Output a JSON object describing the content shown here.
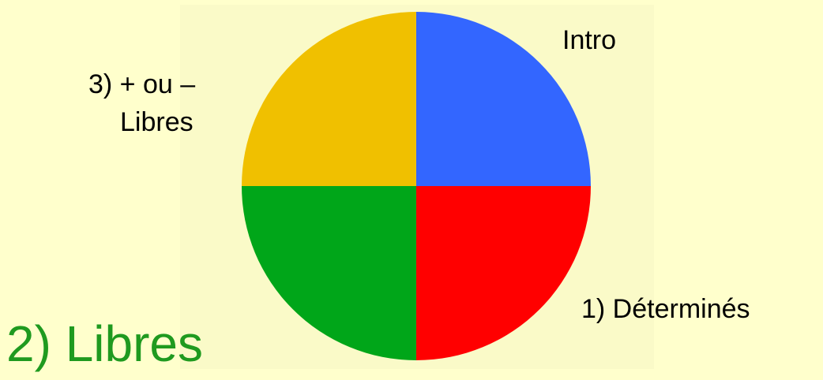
{
  "chart_data": {
    "type": "pie",
    "start_angle_deg": 0,
    "direction": "clockwise",
    "slices": [
      {
        "label": "Intro",
        "value": 25,
        "color": "#3366ff"
      },
      {
        "label": "1) Déterminés",
        "value": 25,
        "color": "#ff0000"
      },
      {
        "label": "2) Libres",
        "value": 25,
        "color": "#00a619"
      },
      {
        "label": "3) + ou – Libres",
        "value": 25,
        "color": "#f0c000"
      }
    ],
    "labels": {
      "intro": "Intro",
      "determines": "1) Déterminés",
      "libres": "2) Libres",
      "plus_ou_moins_line1": "3) + ou –",
      "plus_ou_moins_line2": "Libres"
    },
    "highlight_color": "#1f9a1f"
  }
}
